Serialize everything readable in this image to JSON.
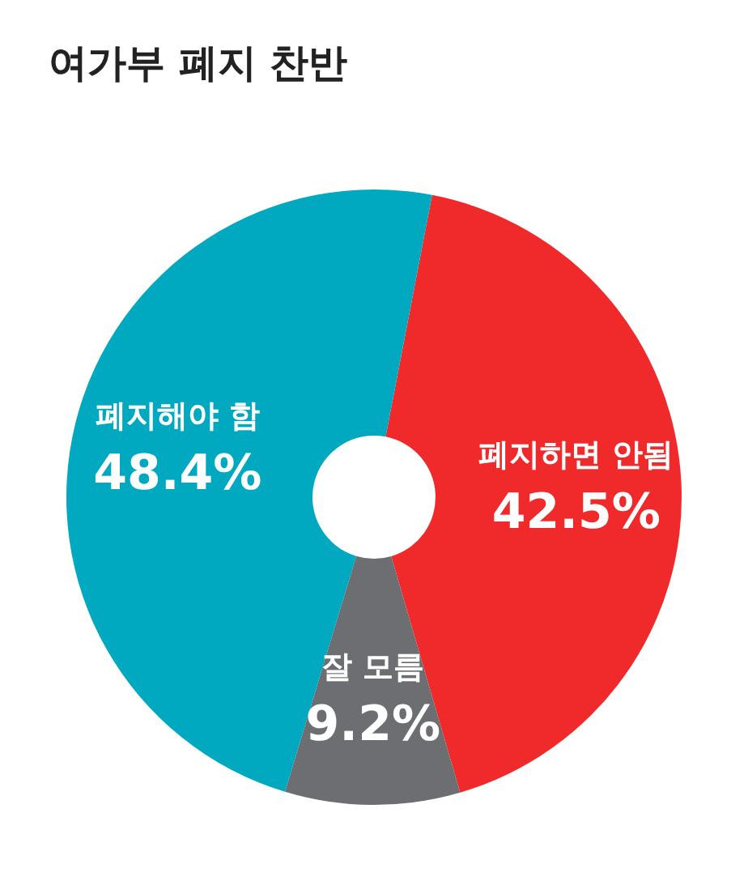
{
  "chart_data": {
    "type": "donut",
    "title": "여가부 폐지 찬반",
    "categories": [
      "폐지하면 안됨",
      "잘 모름",
      "폐지해야 함"
    ],
    "values": [
      42.5,
      9.2,
      48.4
    ],
    "value_labels": [
      "42.5%",
      "9.2%",
      "48.4%"
    ],
    "colors": [
      "#f0292b",
      "#6d6e71",
      "#00a9c0"
    ],
    "legend": false
  }
}
